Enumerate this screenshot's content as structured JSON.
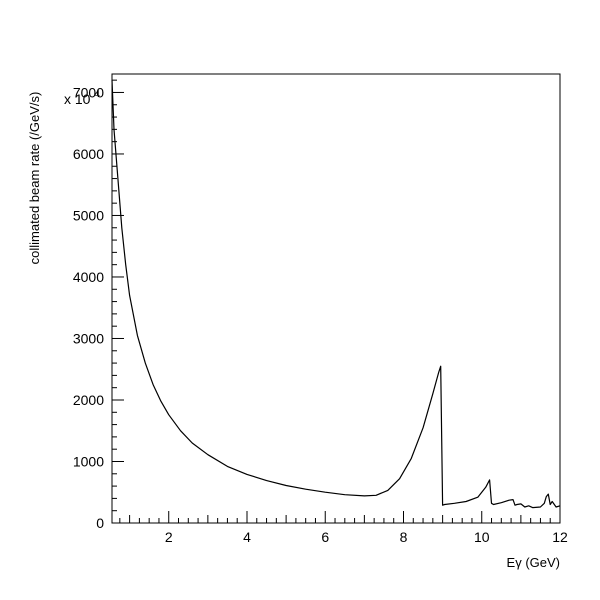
{
  "chart_data": {
    "type": "line",
    "xlabel": "Eγ (GeV)",
    "ylabel": "collimated beam rate (/GeV/s)",
    "y_multiplier_label": "x 10",
    "y_multiplier_exponent": "4",
    "xlim": [
      0.55,
      12
    ],
    "ylim": [
      0,
      7300
    ],
    "x_ticks": [
      2,
      4,
      6,
      8,
      10,
      12
    ],
    "y_ticks": [
      0,
      1000,
      2000,
      3000,
      4000,
      5000,
      6000,
      7000
    ],
    "grid": false,
    "legend": "none",
    "series": [
      {
        "x": [
          0.55,
          0.6,
          0.7,
          0.8,
          0.9,
          1.0,
          1.2,
          1.4,
          1.6,
          1.8,
          2.0,
          2.3,
          2.6,
          3.0,
          3.5,
          4.0,
          4.5,
          5.0,
          5.5,
          6.0,
          6.5,
          7.0,
          7.3,
          7.6,
          7.9,
          8.2,
          8.5,
          8.75,
          8.9,
          8.95,
          9.0,
          9.05,
          9.3,
          9.6,
          9.9,
          10.1,
          10.2,
          10.25,
          10.3,
          10.5,
          10.7,
          10.8,
          10.85,
          10.9,
          11.0,
          11.1,
          11.2,
          11.3,
          11.5,
          11.6,
          11.65,
          11.7,
          11.75,
          11.8,
          11.9,
          12.0
        ],
        "y": [
          7200,
          6400,
          5600,
          4800,
          4200,
          3700,
          3050,
          2600,
          2250,
          1980,
          1760,
          1500,
          1300,
          1110,
          920,
          790,
          690,
          610,
          550,
          500,
          460,
          440,
          450,
          530,
          720,
          1050,
          1550,
          2100,
          2450,
          2550,
          290,
          300,
          320,
          350,
          420,
          580,
          700,
          320,
          300,
          330,
          370,
          380,
          290,
          300,
          310,
          260,
          280,
          250,
          260,
          320,
          430,
          470,
          300,
          350,
          260,
          280
        ]
      }
    ]
  }
}
